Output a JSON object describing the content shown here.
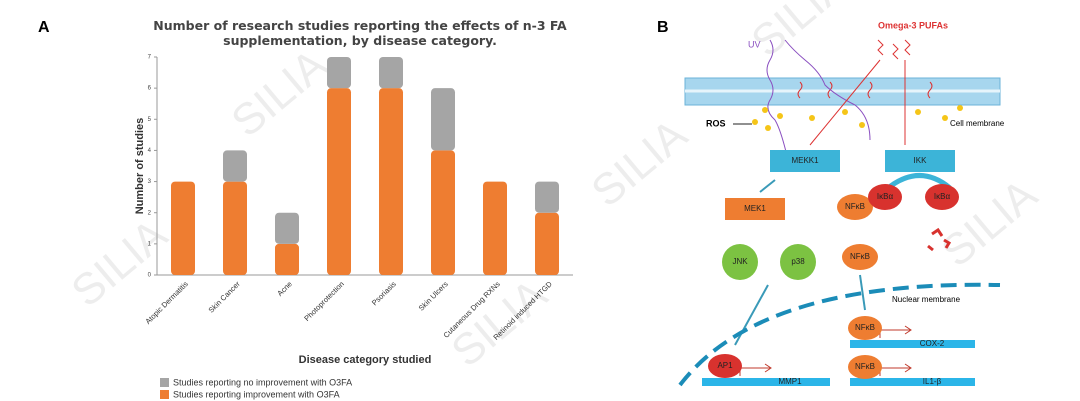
{
  "panel_labels": [
    "A",
    "B"
  ],
  "watermark": "SILIA",
  "chart_data": {
    "type": "stacked_bar",
    "title": "Number of research studies reporting the effects of n-3 FA supplementation, by disease category.",
    "x_label": "Disease category studied",
    "y_label": "Number of studies",
    "categories": [
      "Atopic Dermatitis",
      "Skin Cancer",
      "Acne",
      "Photoprotection",
      "Psoriasis",
      "Skin Ulcers",
      "Cutaneous Drug RXNs",
      "Retinoid induced HTGD"
    ],
    "series": [
      {
        "name": "Studies reporting improvement with O3FA",
        "color": "#ee7d31",
        "values": [
          3,
          3,
          1,
          6,
          6,
          4,
          3,
          2
        ]
      },
      {
        "name": "Studies reporting no improvement with O3FA",
        "color": "#a5a5a5",
        "values": [
          0,
          1,
          1,
          1,
          1,
          2,
          0,
          1
        ]
      }
    ],
    "ylim": [
      0,
      7
    ],
    "yticks": [
      0,
      1,
      2,
      3,
      4,
      5,
      6,
      7
    ],
    "grid": false
  },
  "diagram": {
    "nodes": [
      {
        "label": "UV"
      },
      {
        "label": "Omega-3 PUFAs"
      },
      {
        "label": "Cell membrane"
      },
      {
        "label": "ROS"
      },
      {
        "label": "MEKK1"
      },
      {
        "label": "IKK"
      },
      {
        "label": "IκBα"
      },
      {
        "label": "IκBα"
      },
      {
        "label": "NFκB"
      },
      {
        "label": "MEK1"
      },
      {
        "label": "JNK"
      },
      {
        "label": "p38"
      },
      {
        "label": "NFκB"
      },
      {
        "label": "Nuclear membrane"
      },
      {
        "label": "NFκB"
      },
      {
        "label": "COX-2"
      },
      {
        "label": "AP1"
      },
      {
        "label": "MMP1"
      },
      {
        "label": "NFκB"
      },
      {
        "label": "IL1-β"
      }
    ]
  }
}
